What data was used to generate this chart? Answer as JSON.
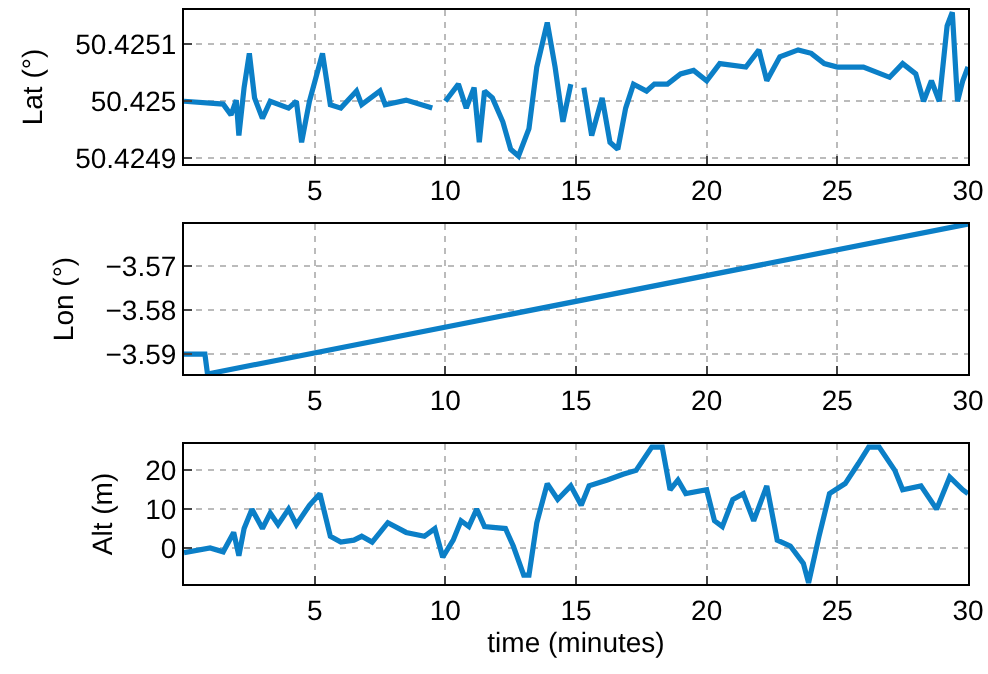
{
  "chart_data": [
    {
      "type": "line",
      "ylabel": "Lat (°)",
      "color": "#0b7fc7",
      "grid": true,
      "xlim": [
        0,
        30
      ],
      "xticks": [
        5,
        10,
        15,
        20,
        25,
        30
      ],
      "ylim": [
        50.42489,
        50.42516
      ],
      "yticks": [
        50.4249,
        50.425,
        50.4251
      ],
      "x": [
        0,
        1.5,
        1.8,
        2.0,
        2.1,
        2.3,
        2.5,
        2.7,
        3.0,
        3.3,
        4,
        4.3,
        4.5,
        4.8,
        5.3,
        5.6,
        6.0,
        6.6,
        6.8,
        7.5,
        7.7,
        8.5,
        9.5,
        9.8,
        10,
        10.5,
        10.8,
        11.1,
        11.3,
        11.5,
        11.8,
        12.2,
        12.5,
        12.8,
        13.2,
        13.5,
        13.9,
        14.2,
        14.5,
        14.8,
        15.0,
        15.3,
        15.6,
        16.0,
        16.3,
        16.6,
        16.9,
        17.2,
        17.7,
        18.0,
        18.5,
        19,
        19.5,
        20,
        20.5,
        21.5,
        22,
        22.3,
        22.8,
        23.5,
        24,
        24.5,
        25,
        26,
        27,
        27.5,
        28,
        28.3,
        28.6,
        28.9,
        29.2,
        29.4,
        29.6,
        29.8,
        30
      ],
      "values": [
        50.425,
        50.424995,
        50.424976,
        50.425002,
        50.42494,
        50.425024,
        50.425084,
        50.425006,
        50.42497,
        50.425,
        50.424988,
        50.425,
        50.424928,
        50.425,
        50.425084,
        50.424994,
        50.424988,
        50.425018,
        50.424994,
        50.425018,
        50.424994,
        50.425002,
        50.424988,
        null,
        50.425,
        50.42503,
        50.424988,
        50.425024,
        50.424928,
        50.425018,
        50.425006,
        50.424964,
        50.424916,
        50.424904,
        50.424952,
        50.42506,
        50.425138,
        50.42506,
        50.424964,
        50.42503,
        null,
        50.425024,
        50.42494,
        50.425006,
        50.424928,
        50.424916,
        50.424988,
        50.42503,
        50.425018,
        50.42503,
        50.42503,
        50.425048,
        50.425054,
        50.425036,
        50.425066,
        50.42506,
        50.42509,
        50.425036,
        50.425078,
        50.42509,
        50.425084,
        50.425066,
        50.42506,
        50.42506,
        50.425042,
        50.425066,
        50.425048,
        50.425,
        50.425036,
        50.425,
        50.425132,
        50.425156,
        50.425,
        50.425036,
        50.42506
      ]
    },
    {
      "type": "line",
      "ylabel": "Lon (°)",
      "color": "#0b7fc7",
      "grid": true,
      "xlim": [
        0,
        30
      ],
      "xticks": [
        5,
        10,
        15,
        20,
        25,
        30
      ],
      "ylim": [
        -3.5945,
        -3.5605
      ],
      "yticks": [
        {
          "value": -3.59,
          "label": "−3.59"
        },
        {
          "value": -3.58,
          "label": "−3.58"
        },
        {
          "value": -3.57,
          "label": "−3.57"
        }
      ],
      "x": [
        0,
        0.8,
        0.9,
        30
      ],
      "values": [
        -3.59,
        -3.59,
        -3.5945,
        -3.5605
      ]
    },
    {
      "type": "line",
      "ylabel": "Alt (m)",
      "xlabel": "time (minutes)",
      "color": "#0b7fc7",
      "grid": true,
      "xlim": [
        0,
        30
      ],
      "xticks": [
        5,
        10,
        15,
        20,
        25,
        30
      ],
      "ylim": [
        -9.3,
        26.8
      ],
      "yticks": [
        0,
        10,
        20
      ],
      "x": [
        0,
        1,
        1.5,
        1.9,
        2.1,
        2.3,
        2.6,
        3.0,
        3.3,
        3.6,
        4.0,
        4.3,
        4.8,
        5.2,
        5.6,
        6.0,
        6.5,
        6.8,
        7.2,
        7.8,
        8.5,
        9.2,
        9.6,
        9.9,
        10.3,
        10.6,
        10.9,
        11.2,
        11.5,
        12.3,
        12.6,
        13.0,
        13.2,
        13.5,
        13.9,
        14.3,
        14.8,
        15.2,
        15.5,
        16.2,
        16.8,
        17.3,
        17.9,
        18.3,
        18.6,
        18.9,
        19.2,
        20,
        20.3,
        20.6,
        21,
        21.4,
        21.8,
        22.3,
        22.7,
        23.2,
        23.7,
        23.9,
        24.3,
        24.7,
        25.3,
        25.8,
        26.2,
        26.6,
        27.2,
        27.5,
        28.2,
        28.8,
        29.3,
        29.8,
        30
      ],
      "values": [
        -1.2,
        0,
        -1,
        4,
        -2,
        5,
        10,
        5,
        9,
        6,
        10,
        6,
        11,
        14,
        3,
        1.5,
        2,
        3,
        1.5,
        6.5,
        4,
        3,
        5,
        -2.4,
        2,
        7,
        5.5,
        10,
        5.5,
        5,
        0.5,
        -7,
        -7,
        6.5,
        16.6,
        12.5,
        16,
        11,
        16,
        17.5,
        19,
        20,
        26,
        26,
        15,
        17.5,
        14,
        15,
        7,
        5.5,
        12.5,
        14,
        7,
        16,
        2,
        0.5,
        -4,
        -9,
        3,
        14,
        16.6,
        21.7,
        26,
        26,
        20,
        15,
        16,
        10,
        18.3,
        15,
        14
      ]
    }
  ]
}
